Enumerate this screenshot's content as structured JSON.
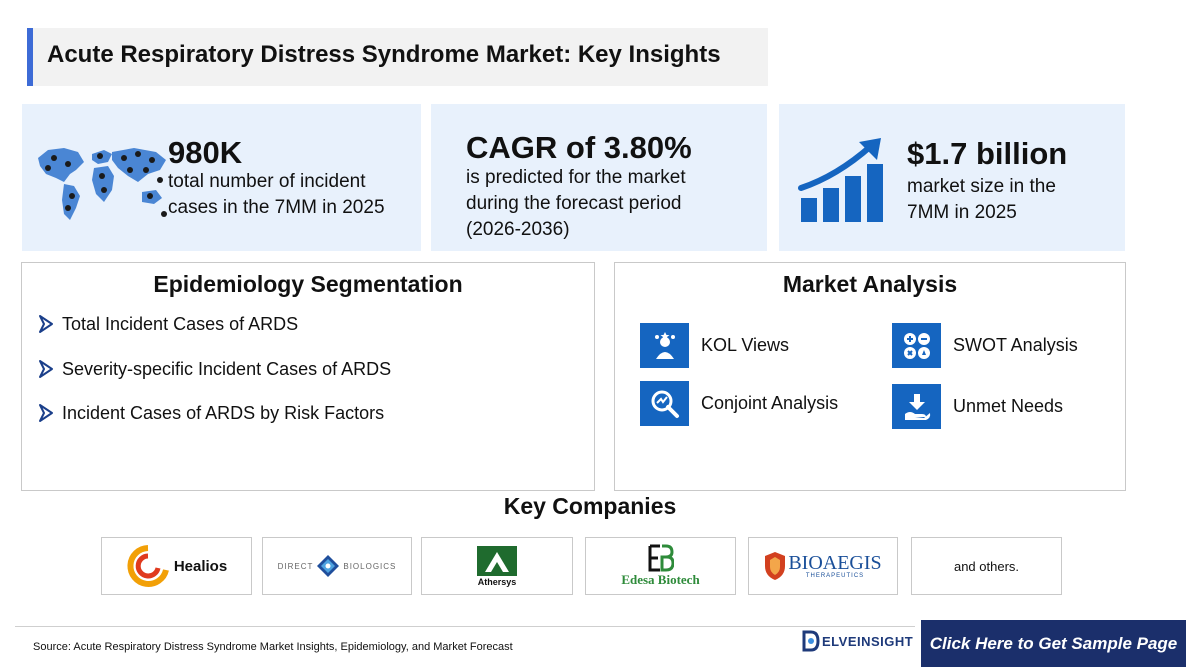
{
  "title": "Acute Respiratory Distress Syndrome Market: Key Insights",
  "stats": [
    {
      "value": "980K",
      "description_lines": [
        "total number of incident",
        "cases in the 7MM in 2025"
      ],
      "icon": "world-map-icon"
    },
    {
      "value": "CAGR of 3.80%",
      "description_lines": [
        "is predicted for the market",
        "during the forecast period",
        "(2026-2036)"
      ]
    },
    {
      "value": "$1.7 billion",
      "description_lines": [
        "market size in the",
        "7MM in 2025"
      ],
      "icon": "growth-chart-icon"
    }
  ],
  "epidemiology": {
    "title": "Epidemiology Segmentation",
    "items": [
      "Total Incident Cases of ARDS",
      "Severity-specific Incident Cases of ARDS",
      "Incident Cases of ARDS by Risk Factors"
    ]
  },
  "market_analysis": {
    "title": "Market Analysis",
    "items": [
      {
        "label": "KOL Views",
        "icon": "kol-icon"
      },
      {
        "label": "SWOT Analysis",
        "icon": "swot-icon"
      },
      {
        "label": "Conjoint Analysis",
        "icon": "conjoint-icon"
      },
      {
        "label": "Unmet Needs",
        "icon": "unmet-needs-icon"
      }
    ]
  },
  "key_companies": {
    "title": "Key Companies",
    "logos": [
      {
        "name": "Healios"
      },
      {
        "name": "DIRECT BIOLOGICS",
        "left": "DIRECT",
        "right": "BIOLOGICS"
      },
      {
        "name": "Athersys"
      },
      {
        "name": "Edesa Biotech"
      },
      {
        "name": "BIOAEGIS",
        "sub": "THERAPEUTICS"
      }
    ],
    "others": "and others."
  },
  "footer": {
    "source": "Source: Acute Respiratory Distress Syndrome Market Insights, Epidemiology, and Market Forecast",
    "brand": "ELVEINSIGHT",
    "cta": "Click Here to Get Sample Page"
  },
  "colors": {
    "accent": "#3d6bd6",
    "card_bg": "#e8f1fc",
    "icon_blue": "#1565c0",
    "cta_bg": "#1b2f6b"
  }
}
